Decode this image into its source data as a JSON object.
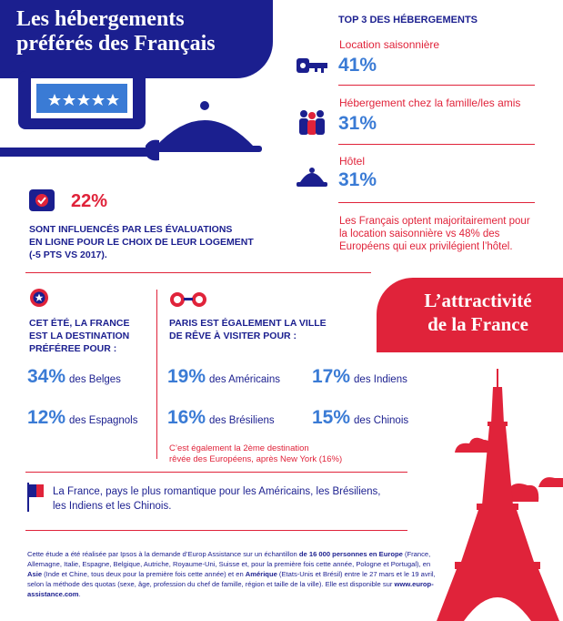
{
  "header": {
    "title": "Les hébergements préférés des Français"
  },
  "top3": {
    "heading": "TOP 3 DES HÉBERGEMENTS",
    "items": [
      {
        "label": "Location saisonnière",
        "value": "41%",
        "icon": "key-icon"
      },
      {
        "label": "Hébergement chez la famille/les amis",
        "value": "31%",
        "icon": "family-icon"
      },
      {
        "label": "Hôtel",
        "value": "31%",
        "icon": "hotel-bell-icon"
      }
    ],
    "note": "Les Français optent majoritairement pour la location saisonnière vs 48% des Européens qui eux privilégient l’hôtel."
  },
  "evaluations": {
    "value": "22%",
    "text_line1": "SONT INFLUENCÉS PAR LES ÉVALUATIONS",
    "text_line2": "EN LIGNE POUR LE CHOIX DE LEUR LOGEMENT",
    "text_line3": "(-5 PTS VS 2017)."
  },
  "attractivite": {
    "line1": "L’attractivité",
    "line2": "de la France"
  },
  "france_section": {
    "heading_line1": "CET ÉTÉ, LA FRANCE",
    "heading_line2": "EST LA DESTINATION",
    "heading_line3": "PRÉFÉREE POUR :",
    "stats": [
      {
        "value": "34%",
        "label": "des Belges"
      },
      {
        "value": "12%",
        "label": "des Espagnols"
      }
    ]
  },
  "paris_section": {
    "heading_line1": "PARIS EST ÉGALEMENT LA VILLE",
    "heading_line2": "DE RÊVE À VISITER POUR :",
    "stats": [
      {
        "value": "19%",
        "label": "des Américains"
      },
      {
        "value": "17%",
        "label": "des Indiens"
      },
      {
        "value": "16%",
        "label": "des Brésiliens"
      },
      {
        "value": "15%",
        "label": "des Chinois"
      }
    ],
    "note_line1": "C’est également la 2ème destination",
    "note_line2": "rêvée des Européens, après New York (16%)"
  },
  "romantic": {
    "line1": "La France, pays le plus romantique pour les Américains, les Brésiliens,",
    "line2": "les Indiens et les Chinois."
  },
  "footer": {
    "p1": "Cette étude a été réalisée par Ipsos à la demande d’Europ Assistance sur un échantillon ",
    "b1": "de 16 000 personnes en Europe",
    "p2": " (France, Allemagne, Italie, Espagne, Belgique, Autriche, Royaume-Uni, Suisse et, pour la première fois cette année, Pologne et Portugal), en ",
    "b2": "Asie",
    "p3": " (Inde et Chine, tous deux pour la première fois cette année) et en ",
    "b3": "Amérique",
    "p4": " (Etats-Unis et Brésil) entre le 27 mars et le 19 avril, selon la méthode des quotas (sexe, âge, profession du chef de famille, région et taille de la ville). Elle est disponible sur ",
    "b4": "www.europ-assistance.com",
    "p5": "."
  },
  "colors": {
    "navy": "#1b1f8f",
    "red": "#e0233a",
    "blue": "#3a7bd5"
  }
}
